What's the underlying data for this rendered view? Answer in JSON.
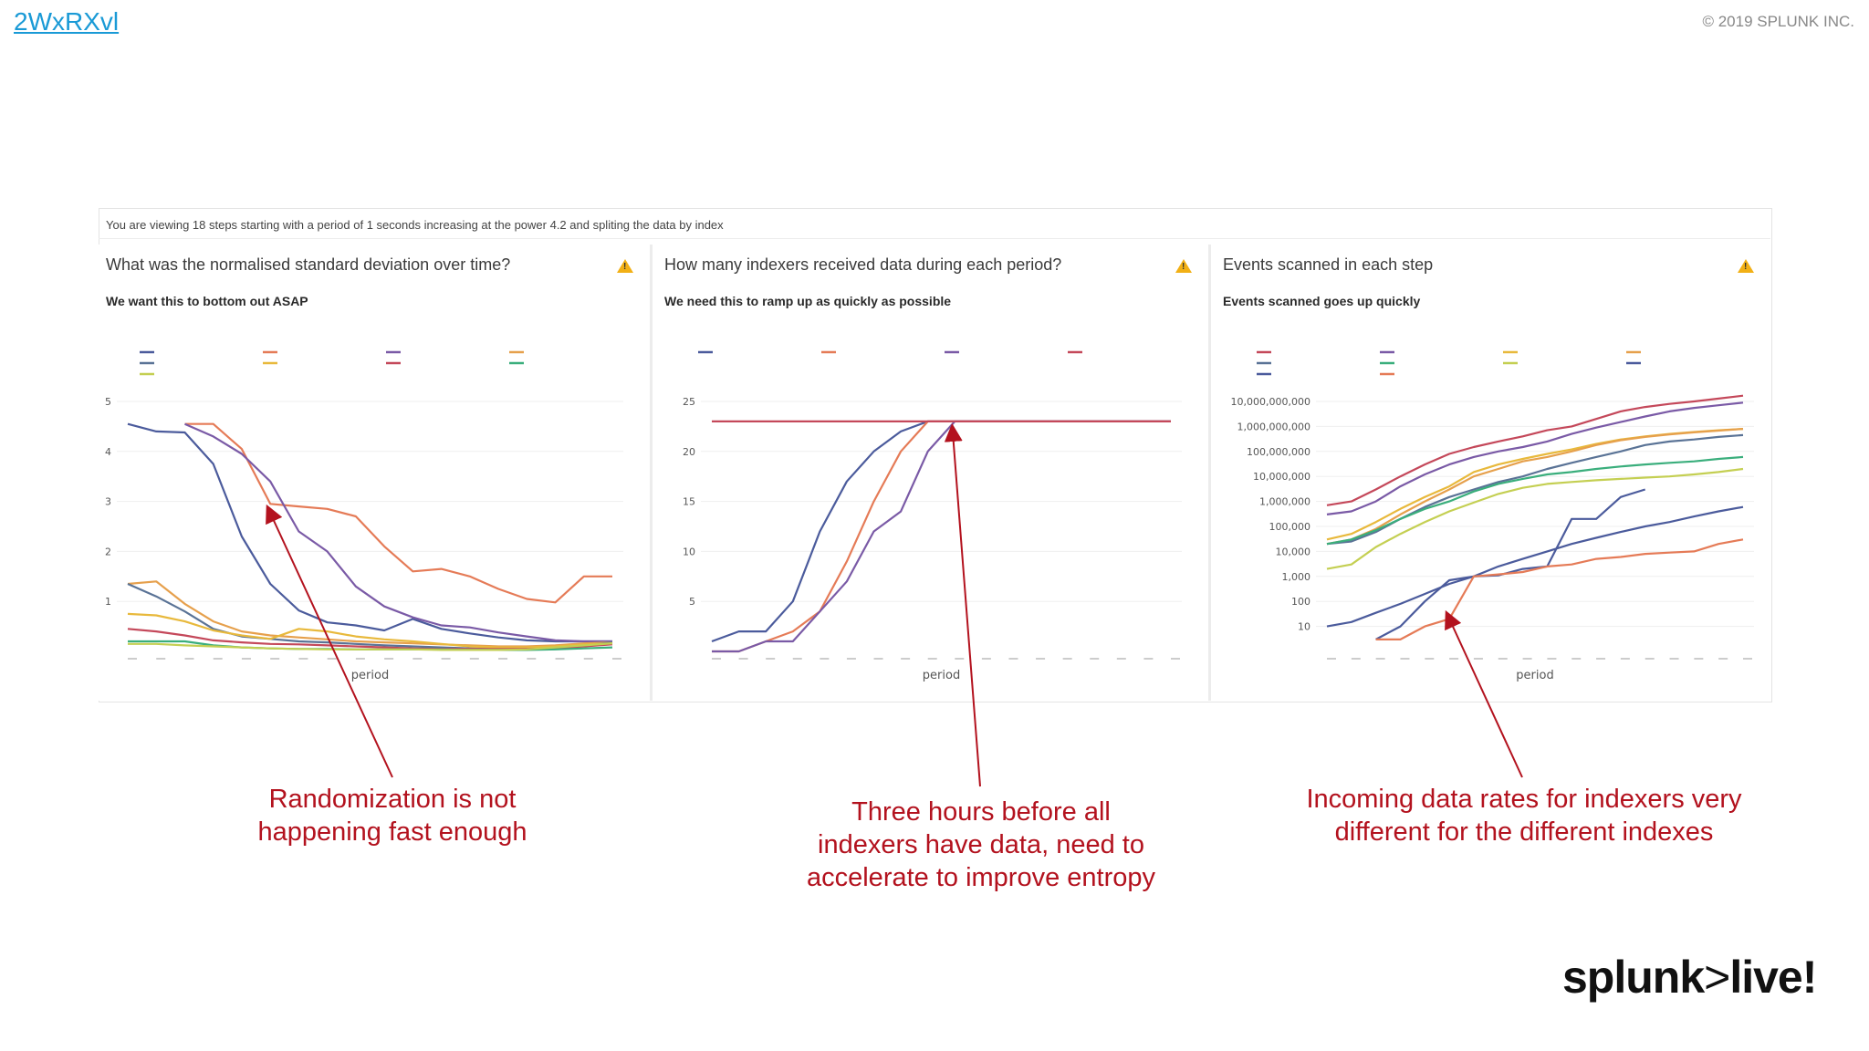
{
  "header": {
    "link_text": "2WxRXvl",
    "copyright": "© 2019 SPLUNK INC."
  },
  "dashboard": {
    "info": "You are viewing 18 steps starting with a period of 1 seconds increasing at the power 4.2 and spliting the data by index"
  },
  "panels": [
    {
      "title": "What was the normalised standard deviation over time?",
      "subtitle": "We want this to bottom out ASAP",
      "xlabel": "period"
    },
    {
      "title": "How many indexers received data during each period?",
      "subtitle": "We need this to ramp up as quickly as possible",
      "xlabel": "period"
    },
    {
      "title": "Events scanned in each step",
      "subtitle": "Events scanned goes up quickly",
      "xlabel": "period"
    }
  ],
  "callouts": {
    "left": [
      "Randomization is not",
      "happening fast enough"
    ],
    "middle": [
      "Three hours before all",
      "indexers have data, need to",
      "accelerate to improve entropy"
    ],
    "right": [
      "Incoming data rates for indexers very",
      "different for the different indexes"
    ]
  },
  "logo": {
    "name": "splunk",
    "gt": ">",
    "live": "live!"
  },
  "colors": {
    "accent_red": "#b3121e",
    "series": [
      "#e8b93c",
      "#e57b57",
      "#4b5b9c",
      "#3aae7c",
      "#5a7396",
      "#c4cf52",
      "#c4485a",
      "#e6a04c",
      "#7a5aa6"
    ]
  },
  "chart_data": [
    {
      "type": "line",
      "title": "What was the normalised standard deviation over time?",
      "xlabel": "period",
      "ylabel": "",
      "ylim": [
        0,
        5
      ],
      "yticks": [
        1,
        2,
        3,
        4,
        5
      ],
      "x": [
        1,
        2,
        3,
        4,
        5,
        6,
        7,
        8,
        9,
        10,
        11,
        12,
        13,
        14,
        15,
        16,
        17,
        18
      ],
      "series": [
        {
          "values": [
            4.55,
            4.4,
            4.38,
            3.75,
            2.3,
            1.35,
            0.82,
            0.58,
            0.52,
            0.42,
            0.65,
            0.45,
            0.36,
            0.28,
            0.22,
            0.2,
            0.2,
            0.2
          ],
          "color": "#4b5b9c"
        },
        {
          "values": [
            null,
            null,
            4.55,
            4.55,
            4.05,
            2.95,
            2.9,
            2.85,
            2.7,
            2.1,
            1.6,
            1.65,
            1.5,
            1.25,
            1.05,
            0.98,
            1.5,
            1.5
          ],
          "color": "#e57b57"
        },
        {
          "values": [
            null,
            null,
            4.55,
            4.3,
            3.95,
            3.4,
            2.4,
            2.0,
            1.3,
            0.9,
            0.68,
            0.52,
            0.48,
            0.38,
            0.3,
            0.22,
            0.2,
            0.2
          ],
          "color": "#7a5aa6"
        },
        {
          "values": [
            1.35,
            1.4,
            0.95,
            0.6,
            0.4,
            0.32,
            0.28,
            0.24,
            0.2,
            0.18,
            0.16,
            0.14,
            0.12,
            0.1,
            0.1,
            0.12,
            0.16,
            0.18
          ],
          "color": "#e6a04c"
        },
        {
          "values": [
            1.35,
            1.1,
            0.8,
            0.45,
            0.3,
            0.25,
            0.2,
            0.18,
            0.15,
            0.12,
            0.1,
            0.08,
            0.06,
            0.05,
            0.05,
            0.06,
            0.12,
            0.18
          ],
          "color": "#5a7396"
        },
        {
          "values": [
            0.75,
            0.72,
            0.6,
            0.42,
            0.32,
            0.25,
            0.45,
            0.4,
            0.3,
            0.24,
            0.2,
            0.15,
            0.1,
            0.08,
            0.08,
            0.1,
            0.14,
            0.16
          ],
          "color": "#e8b93c"
        },
        {
          "values": [
            0.45,
            0.4,
            0.32,
            0.22,
            0.18,
            0.15,
            0.14,
            0.12,
            0.1,
            0.08,
            0.06,
            0.05,
            0.05,
            0.05,
            0.05,
            0.06,
            0.1,
            0.14
          ],
          "color": "#c4485a"
        },
        {
          "values": [
            0.2,
            0.2,
            0.2,
            0.12,
            0.08,
            0.06,
            0.05,
            0.05,
            0.04,
            0.04,
            0.04,
            0.04,
            0.03,
            0.03,
            0.03,
            0.04,
            0.06,
            0.08
          ],
          "color": "#3aae7c"
        },
        {
          "values": [
            0.15,
            0.15,
            0.12,
            0.1,
            0.08,
            0.06,
            0.05,
            0.04,
            0.04,
            0.04,
            0.04,
            0.03,
            0.03,
            0.03,
            0.04,
            0.08,
            0.12,
            0.16
          ],
          "color": "#c4cf52"
        }
      ]
    },
    {
      "type": "line",
      "title": "How many indexers received data during each period?",
      "xlabel": "period",
      "ylabel": "",
      "ylim": [
        0,
        25
      ],
      "yticks": [
        5,
        10,
        15,
        20,
        25
      ],
      "x": [
        1,
        2,
        3,
        4,
        5,
        6,
        7,
        8,
        9,
        10,
        11,
        12,
        13,
        14,
        15,
        16,
        17,
        18
      ],
      "series": [
        {
          "values": [
            1,
            2,
            2,
            5,
            12,
            17,
            20,
            22,
            23,
            23,
            23,
            23,
            23,
            23,
            23,
            23,
            23,
            23
          ],
          "color": "#4b5b9c"
        },
        {
          "values": [
            0,
            0,
            1,
            2,
            4,
            9,
            15,
            20,
            23,
            23,
            23,
            23,
            23,
            23,
            23,
            23,
            23,
            23
          ],
          "color": "#e57b57"
        },
        {
          "values": [
            0,
            0,
            1,
            1,
            4,
            7,
            12,
            14,
            20,
            23,
            23,
            23,
            23,
            23,
            23,
            23,
            23,
            23
          ],
          "color": "#7a5aa6"
        },
        {
          "values": [
            23,
            23,
            23,
            23,
            23,
            23,
            23,
            23,
            23,
            23,
            23,
            23,
            23,
            23,
            23,
            23,
            23,
            23
          ],
          "color": "#c4485a"
        }
      ]
    },
    {
      "type": "line",
      "title": "Events scanned in each step",
      "xlabel": "period",
      "ylabel": "",
      "yscale": "log",
      "ylim": [
        1,
        10000000000
      ],
      "yticks": [
        "10",
        "100",
        "1,000",
        "10,000",
        "100,000",
        "1,000,000",
        "10,000,000",
        "100,000,000",
        "1,000,000,000",
        "10,000,000,000"
      ],
      "x": [
        1,
        2,
        3,
        4,
        5,
        6,
        7,
        8,
        9,
        10,
        11,
        12,
        13,
        14,
        15,
        16,
        17,
        18
      ],
      "series": [
        {
          "values": [
            700000,
            1000000,
            3000000,
            10000000,
            30000000,
            80000000,
            150000000,
            250000000,
            400000000,
            700000000,
            1000000000,
            2000000000,
            4000000000,
            6000000000,
            8000000000,
            10000000000,
            13000000000,
            17000000000
          ],
          "color": "#c4485a"
        },
        {
          "values": [
            300000,
            400000,
            1000000,
            4000000,
            12000000,
            30000000,
            60000000,
            100000000,
            150000000,
            250000000,
            500000000,
            900000000,
            1500000000,
            2500000000,
            4000000000,
            5500000000,
            7000000000,
            9000000000
          ],
          "color": "#7a5aa6"
        },
        {
          "values": [
            30000,
            50000,
            150000,
            500000,
            1500000,
            4000000,
            15000000,
            30000000,
            50000000,
            80000000,
            120000000,
            200000000,
            300000000,
            400000000,
            500000000,
            600000000,
            700000000,
            800000000
          ],
          "color": "#e8b93c"
        },
        {
          "values": [
            20000,
            30000,
            80000,
            300000,
            1000000,
            3000000,
            10000000,
            20000000,
            40000000,
            60000000,
            100000000,
            180000000,
            280000000,
            380000000,
            480000000,
            580000000,
            680000000,
            800000000
          ],
          "color": "#e6a04c"
        },
        {
          "values": [
            20000,
            25000,
            60000,
            200000,
            600000,
            1500000,
            3000000,
            6000000,
            10000000,
            20000000,
            35000000,
            60000000,
            100000000,
            180000000,
            250000000,
            300000000,
            380000000,
            450000000
          ],
          "color": "#5a7396"
        },
        {
          "values": [
            20000,
            30000,
            70000,
            200000,
            500000,
            1000000,
            2500000,
            5000000,
            8000000,
            12000000,
            15000000,
            20000000,
            25000000,
            30000000,
            35000000,
            40000000,
            50000000,
            60000000
          ],
          "color": "#3aae7c"
        },
        {
          "values": [
            2000,
            3000,
            15000,
            50000,
            150000,
            400000,
            900000,
            2000000,
            3500000,
            5000000,
            6000000,
            7000000,
            8000000,
            9000000,
            10000000,
            12000000,
            15000000,
            20000000
          ],
          "color": "#c4cf52"
        },
        {
          "values": [
            10,
            15,
            35,
            80,
            200,
            500,
            1000,
            2500,
            5000,
            10000,
            20000,
            35000,
            60000,
            100000,
            150000,
            250000,
            400000,
            600000
          ],
          "color": "#4b5b9c"
        },
        {
          "values": [
            null,
            null,
            3,
            10,
            100,
            700,
            1000,
            1100,
            2000,
            2500,
            200000,
            200000,
            1500000,
            3000000,
            null,
            null,
            null,
            null
          ],
          "color": "#4b5b9c"
        },
        {
          "values": [
            null,
            null,
            3,
            3,
            10,
            20,
            1000,
            1200,
            1500,
            2500,
            3000,
            5000,
            6000,
            8000,
            9000,
            10000,
            20000,
            30000
          ],
          "color": "#e57b57"
        }
      ]
    }
  ]
}
